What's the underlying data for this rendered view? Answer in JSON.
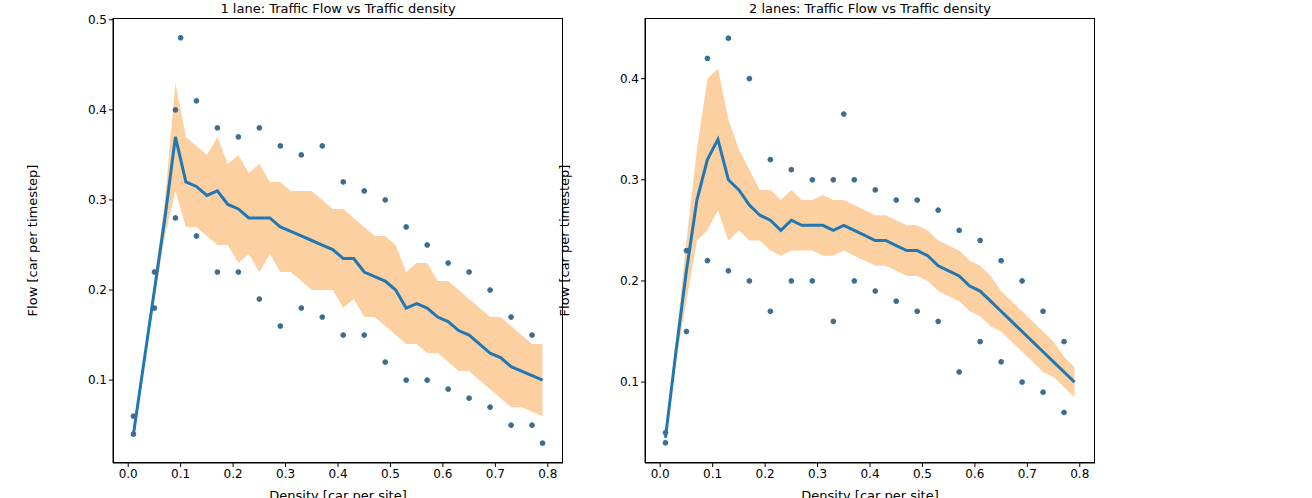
{
  "chart_data": [
    {
      "type": "scatter",
      "title": "1 lane: Traffic Flow vs Traffic density",
      "x_label": "Density [car per site]",
      "y_label": "Flow [car per timestep]",
      "xlim": [
        -0.029,
        0.829
      ],
      "ylim": [
        0.008,
        0.502
      ],
      "xticks": [
        {
          "value": 0,
          "label": "0.0"
        },
        0.1,
        0.2,
        0.3,
        0.4,
        0.5,
        0.6,
        0.7,
        0.8
      ],
      "yticks": [
        0.1,
        0.2,
        0.3,
        0.4,
        0.5
      ],
      "x": [
        0.01,
        0.03,
        0.05,
        0.07,
        0.09,
        0.11,
        0.13,
        0.15,
        0.17,
        0.19,
        0.21,
        0.23,
        0.25,
        0.27,
        0.29,
        0.31,
        0.33,
        0.35,
        0.37,
        0.39,
        0.41,
        0.43,
        0.45,
        0.47,
        0.49,
        0.51,
        0.53,
        0.55,
        0.57,
        0.59,
        0.61,
        0.63,
        0.65,
        0.67,
        0.69,
        0.71,
        0.73,
        0.75,
        0.77,
        0.79
      ],
      "mean": {
        "color": "#1f77b4",
        "values": [
          0.04,
          0.12,
          0.2,
          0.28,
          0.37,
          0.32,
          0.315,
          0.305,
          0.31,
          0.295,
          0.29,
          0.28,
          0.28,
          0.28,
          0.27,
          0.265,
          0.26,
          0.255,
          0.25,
          0.245,
          0.235,
          0.235,
          0.22,
          0.215,
          0.21,
          0.2,
          0.18,
          0.185,
          0.18,
          0.17,
          0.165,
          0.155,
          0.15,
          0.14,
          0.13,
          0.125,
          0.115,
          0.11,
          0.105,
          0.1
        ]
      },
      "band": {
        "color": "#fdd0a2",
        "lower": [
          0.04,
          0.115,
          0.19,
          0.26,
          0.31,
          0.27,
          0.27,
          0.26,
          0.25,
          0.25,
          0.23,
          0.24,
          0.22,
          0.24,
          0.22,
          0.22,
          0.21,
          0.2,
          0.2,
          0.2,
          0.18,
          0.19,
          0.17,
          0.17,
          0.16,
          0.15,
          0.14,
          0.14,
          0.13,
          0.13,
          0.12,
          0.11,
          0.11,
          0.1,
          0.09,
          0.08,
          0.07,
          0.07,
          0.065,
          0.06
        ],
        "upper": [
          0.045,
          0.125,
          0.21,
          0.3,
          0.43,
          0.37,
          0.36,
          0.35,
          0.37,
          0.34,
          0.35,
          0.33,
          0.34,
          0.32,
          0.32,
          0.31,
          0.31,
          0.31,
          0.3,
          0.29,
          0.29,
          0.28,
          0.27,
          0.26,
          0.26,
          0.25,
          0.22,
          0.23,
          0.23,
          0.21,
          0.21,
          0.2,
          0.19,
          0.18,
          0.17,
          0.17,
          0.16,
          0.15,
          0.14,
          0.14
        ]
      },
      "points": {
        "color": "#1f77b4",
        "x": [
          0.01,
          0.01,
          0.05,
          0.05,
          0.09,
          0.09,
          0.13,
          0.13,
          0.17,
          0.17,
          0.21,
          0.21,
          0.25,
          0.25,
          0.29,
          0.29,
          0.33,
          0.33,
          0.37,
          0.37,
          0.41,
          0.41,
          0.45,
          0.45,
          0.49,
          0.49,
          0.53,
          0.53,
          0.57,
          0.57,
          0.61,
          0.61,
          0.65,
          0.65,
          0.69,
          0.69,
          0.73,
          0.73,
          0.77,
          0.77,
          0.1,
          0.79
        ],
        "y": [
          0.04,
          0.06,
          0.18,
          0.22,
          0.28,
          0.4,
          0.26,
          0.41,
          0.22,
          0.38,
          0.22,
          0.37,
          0.19,
          0.38,
          0.16,
          0.36,
          0.18,
          0.35,
          0.17,
          0.36,
          0.15,
          0.32,
          0.15,
          0.31,
          0.12,
          0.3,
          0.1,
          0.27,
          0.1,
          0.25,
          0.09,
          0.23,
          0.08,
          0.22,
          0.07,
          0.2,
          0.05,
          0.17,
          0.05,
          0.15,
          0.48,
          0.03
        ]
      }
    },
    {
      "type": "scatter",
      "title": "2 lanes: Traffic Flow vs Traffic density",
      "x_label": "Density [car per site]",
      "y_label": "Flow [car per timestep]",
      "xlim": [
        -0.029,
        0.829
      ],
      "ylim": [
        0.02,
        0.46
      ],
      "xticks": [
        {
          "value": 0,
          "label": "0.0"
        },
        0.1,
        0.2,
        0.3,
        0.4,
        0.5,
        0.6,
        0.7,
        0.8
      ],
      "yticks": [
        0.1,
        0.2,
        0.3,
        0.4
      ],
      "x": [
        0.01,
        0.03,
        0.05,
        0.07,
        0.09,
        0.11,
        0.13,
        0.15,
        0.17,
        0.19,
        0.21,
        0.23,
        0.25,
        0.27,
        0.29,
        0.31,
        0.33,
        0.35,
        0.37,
        0.39,
        0.41,
        0.43,
        0.45,
        0.47,
        0.49,
        0.51,
        0.53,
        0.55,
        0.57,
        0.59,
        0.61,
        0.63,
        0.65,
        0.67,
        0.69,
        0.71,
        0.73,
        0.75,
        0.77,
        0.79
      ],
      "mean": {
        "color": "#1f77b4",
        "values": [
          0.045,
          0.13,
          0.21,
          0.28,
          0.32,
          0.34,
          0.3,
          0.29,
          0.275,
          0.265,
          0.26,
          0.25,
          0.26,
          0.255,
          0.255,
          0.255,
          0.25,
          0.255,
          0.25,
          0.245,
          0.24,
          0.24,
          0.235,
          0.23,
          0.23,
          0.225,
          0.215,
          0.21,
          0.205,
          0.195,
          0.19,
          0.18,
          0.17,
          0.16,
          0.15,
          0.14,
          0.13,
          0.12,
          0.11,
          0.1
        ]
      },
      "band": {
        "color": "#fdd0a2",
        "lower": [
          0.04,
          0.12,
          0.18,
          0.24,
          0.25,
          0.27,
          0.24,
          0.25,
          0.24,
          0.24,
          0.23,
          0.225,
          0.23,
          0.23,
          0.23,
          0.225,
          0.225,
          0.23,
          0.225,
          0.22,
          0.215,
          0.215,
          0.21,
          0.205,
          0.205,
          0.2,
          0.19,
          0.185,
          0.18,
          0.17,
          0.165,
          0.155,
          0.15,
          0.14,
          0.13,
          0.12,
          0.11,
          0.105,
          0.095,
          0.085
        ],
        "upper": [
          0.05,
          0.14,
          0.24,
          0.33,
          0.4,
          0.41,
          0.36,
          0.33,
          0.31,
          0.29,
          0.29,
          0.28,
          0.29,
          0.28,
          0.28,
          0.285,
          0.28,
          0.28,
          0.275,
          0.27,
          0.265,
          0.265,
          0.26,
          0.255,
          0.255,
          0.25,
          0.24,
          0.235,
          0.23,
          0.22,
          0.215,
          0.205,
          0.19,
          0.18,
          0.17,
          0.16,
          0.15,
          0.14,
          0.125,
          0.115
        ]
      },
      "points": {
        "color": "#1f77b4",
        "x": [
          0.01,
          0.01,
          0.05,
          0.05,
          0.09,
          0.09,
          0.13,
          0.13,
          0.17,
          0.17,
          0.21,
          0.21,
          0.25,
          0.25,
          0.29,
          0.29,
          0.33,
          0.33,
          0.37,
          0.37,
          0.41,
          0.41,
          0.45,
          0.45,
          0.49,
          0.49,
          0.53,
          0.53,
          0.57,
          0.57,
          0.61,
          0.61,
          0.65,
          0.65,
          0.69,
          0.69,
          0.73,
          0.73,
          0.77,
          0.77,
          0.35
        ],
        "y": [
          0.04,
          0.05,
          0.15,
          0.23,
          0.22,
          0.42,
          0.21,
          0.44,
          0.2,
          0.4,
          0.17,
          0.32,
          0.2,
          0.31,
          0.2,
          0.3,
          0.16,
          0.3,
          0.2,
          0.3,
          0.19,
          0.29,
          0.18,
          0.28,
          0.17,
          0.28,
          0.16,
          0.27,
          0.11,
          0.25,
          0.14,
          0.24,
          0.12,
          0.22,
          0.1,
          0.2,
          0.09,
          0.17,
          0.07,
          0.14,
          0.365
        ]
      }
    }
  ]
}
